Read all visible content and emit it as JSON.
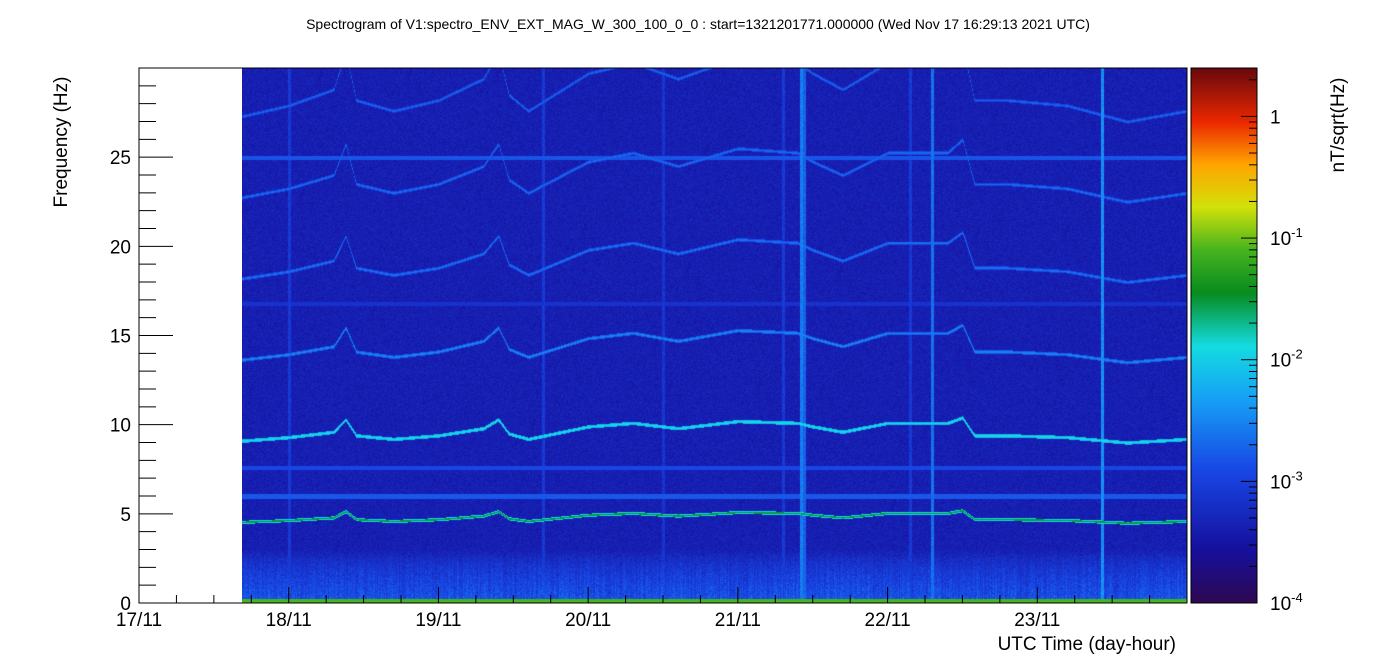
{
  "chart_data": {
    "type": "heatmap",
    "title": "Spectrogram of V1:spectro_ENV_EXT_MAG_W_300_100_0_0 : start=1321201771.000000 (Wed Nov 17 16:29:13 2021 UTC)",
    "xlabel": "UTC Time (day-hour)",
    "ylabel": "Frequency (Hz)",
    "colorbar_label": "nT/sqrt(Hz)",
    "x_tick_labels": [
      "17/11",
      "18/11",
      "19/11",
      "20/11",
      "21/11",
      "22/11",
      "23/11"
    ],
    "x_range_days": [
      17.0,
      24.0
    ],
    "data_start_day": 17.69,
    "y_ticks": [
      0,
      5,
      10,
      15,
      20,
      25
    ],
    "y_tick_labels": [
      "0",
      "5",
      "10",
      "15",
      "20",
      "25"
    ],
    "ylim": [
      0,
      30
    ],
    "colorbar_range": [
      0.0001,
      2.5
    ],
    "colorbar_scale": "log",
    "colorbar_ticks": [
      {
        "value": 1,
        "base": "1",
        "exp": ""
      },
      {
        "value": 0.1,
        "base": "10",
        "exp": "-1"
      },
      {
        "value": 0.01,
        "base": "10",
        "exp": "-2"
      },
      {
        "value": 0.001,
        "base": "10",
        "exp": "-3"
      },
      {
        "value": 0.0001,
        "base": "10",
        "exp": "-4"
      }
    ],
    "background_level": 0.0004,
    "constant_lines": [
      {
        "freq": 25.0,
        "level": 0.0015
      },
      {
        "freq": 7.6,
        "level": 0.0012
      },
      {
        "freq": 6.0,
        "level": 0.0016
      },
      {
        "freq": 16.8,
        "level": 0.0007
      }
    ],
    "fundamental_track": {
      "level": 0.03,
      "points": [
        {
          "day": 17.69,
          "freq": 4.55
        },
        {
          "day": 18.0,
          "freq": 4.65
        },
        {
          "day": 18.3,
          "freq": 4.8
        },
        {
          "day": 18.38,
          "freq": 5.15
        },
        {
          "day": 18.45,
          "freq": 4.7
        },
        {
          "day": 18.7,
          "freq": 4.6
        },
        {
          "day": 19.0,
          "freq": 4.7
        },
        {
          "day": 19.3,
          "freq": 4.9
        },
        {
          "day": 19.4,
          "freq": 5.15
        },
        {
          "day": 19.47,
          "freq": 4.75
        },
        {
          "day": 19.6,
          "freq": 4.6
        },
        {
          "day": 20.0,
          "freq": 4.95
        },
        {
          "day": 20.3,
          "freq": 5.05
        },
        {
          "day": 20.6,
          "freq": 4.9
        },
        {
          "day": 21.0,
          "freq": 5.1
        },
        {
          "day": 21.4,
          "freq": 5.05
        },
        {
          "day": 21.5,
          "freq": 4.95
        },
        {
          "day": 21.7,
          "freq": 4.8
        },
        {
          "day": 22.0,
          "freq": 5.05
        },
        {
          "day": 22.4,
          "freq": 5.05
        },
        {
          "day": 22.5,
          "freq": 5.2
        },
        {
          "day": 22.58,
          "freq": 4.7
        },
        {
          "day": 22.8,
          "freq": 4.7
        },
        {
          "day": 23.2,
          "freq": 4.65
        },
        {
          "day": 23.6,
          "freq": 4.5
        },
        {
          "day": 24.0,
          "freq": 4.6
        }
      ]
    },
    "harmonics": [
      {
        "n": 2,
        "level": 0.012
      },
      {
        "n": 3,
        "level": 0.003
      },
      {
        "n": 4,
        "level": 0.0022
      },
      {
        "n": 5,
        "level": 0.002
      },
      {
        "n": 6,
        "level": 0.0018
      }
    ],
    "vertical_transients": [
      {
        "day": 21.42,
        "level": 0.003
      },
      {
        "day": 21.44,
        "level": 0.002
      },
      {
        "day": 22.3,
        "level": 0.0025
      },
      {
        "day": 23.43,
        "level": 0.004
      },
      {
        "day": 18.0,
        "level": 0.0009
      },
      {
        "day": 19.7,
        "level": 0.0009
      },
      {
        "day": 20.5,
        "level": 0.0008
      },
      {
        "day": 21.3,
        "level": 0.0009
      },
      {
        "day": 22.15,
        "level": 0.0009
      }
    ],
    "colors": {
      "background": "#ffffff",
      "axis": "#000000"
    }
  }
}
